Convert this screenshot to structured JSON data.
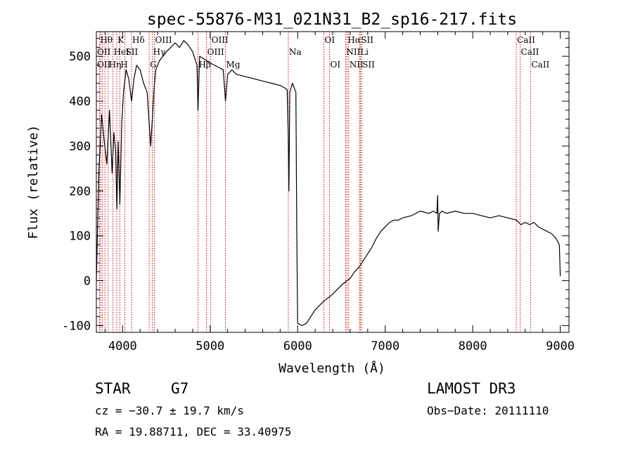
{
  "chart_data": {
    "type": "line",
    "title": "spec-55876-M31_021N31_B2_sp16-217.fits",
    "xlabel": "Wavelength (Å)",
    "ylabel": "Flux (relative)",
    "xlim": [
      3700,
      9100
    ],
    "ylim": [
      -115,
      555
    ],
    "xticks": [
      4000,
      5000,
      6000,
      7000,
      8000,
      9000
    ],
    "yticks": [
      -100,
      0,
      100,
      200,
      300,
      400,
      500
    ],
    "line_color": "#000000",
    "marker_color": "#cc0000",
    "series": [
      {
        "x": [
          3700,
          3730,
          3760,
          3790,
          3820,
          3850,
          3880,
          3900,
          3920,
          3934,
          3950,
          3968,
          3990,
          4010,
          4040,
          4070,
          4102,
          4130,
          4160,
          4200,
          4240,
          4280,
          4300,
          4320,
          4340,
          4360,
          4380,
          4420,
          4460,
          4500,
          4550,
          4600,
          4650,
          4700,
          4750,
          4800,
          4850,
          4861,
          4880,
          4920,
          4960,
          5000,
          5050,
          5100,
          5150,
          5175,
          5200,
          5250,
          5300,
          5400,
          5500,
          5600,
          5700,
          5800,
          5850,
          5880,
          5893,
          5900,
          5910,
          5940,
          5960,
          5980,
          5990,
          6000,
          6050,
          6100,
          6150,
          6200,
          6250,
          6300,
          6350,
          6400,
          6450,
          6500,
          6563,
          6600,
          6650,
          6700,
          6750,
          6800,
          6850,
          6900,
          6950,
          7000,
          7050,
          7100,
          7150,
          7200,
          7300,
          7400,
          7500,
          7550,
          7590,
          7600,
          7605,
          7620,
          7650,
          7700,
          7800,
          7900,
          8000,
          8100,
          8200,
          8300,
          8400,
          8500,
          8550,
          8600,
          8650,
          8700,
          8750,
          8800,
          8850,
          8900,
          8950,
          8990,
          9000
        ],
        "y": [
          0,
          250,
          370,
          310,
          260,
          380,
          240,
          330,
          290,
          160,
          310,
          170,
          350,
          420,
          470,
          450,
          400,
          450,
          480,
          470,
          440,
          420,
          360,
          300,
          360,
          430,
          470,
          490,
          500,
          510,
          520,
          530,
          520,
          535,
          525,
          510,
          480,
          380,
          500,
          495,
          490,
          485,
          480,
          475,
          470,
          400,
          460,
          470,
          460,
          455,
          450,
          445,
          440,
          435,
          430,
          425,
          320,
          200,
          420,
          440,
          430,
          420,
          100,
          -95,
          -100,
          -95,
          -80,
          -65,
          -55,
          -45,
          -38,
          -30,
          -20,
          -10,
          0,
          5,
          20,
          30,
          45,
          60,
          75,
          95,
          110,
          120,
          130,
          135,
          135,
          140,
          145,
          155,
          150,
          155,
          150,
          190,
          110,
          150,
          155,
          150,
          155,
          150,
          150,
          145,
          140,
          145,
          140,
          135,
          125,
          130,
          125,
          130,
          120,
          115,
          110,
          105,
          95,
          80,
          10
        ]
      }
    ],
    "line_markers": [
      {
        "x": 3736
      },
      {
        "x": 3750
      },
      {
        "x": 3770
      },
      {
        "x": 3798
      },
      {
        "x": 3835
      },
      {
        "x": 3889
      },
      {
        "x": 3934
      },
      {
        "x": 3968
      },
      {
        "x": 4026
      },
      {
        "x": 4102
      },
      {
        "x": 4304
      },
      {
        "x": 4340
      },
      {
        "x": 4363
      },
      {
        "x": 4861
      },
      {
        "x": 4959
      },
      {
        "x": 5007
      },
      {
        "x": 5175
      },
      {
        "x": 5893
      },
      {
        "x": 6300
      },
      {
        "x": 6364
      },
      {
        "x": 6548
      },
      {
        "x": 6563
      },
      {
        "x": 6583
      },
      {
        "x": 6707
      },
      {
        "x": 6716
      },
      {
        "x": 6731
      },
      {
        "x": 8498
      },
      {
        "x": 8542
      },
      {
        "x": 8662
      }
    ],
    "line_labels": [
      {
        "text": "Hθ",
        "x": 3736,
        "row": 1
      },
      {
        "text": "K",
        "x": 3934,
        "row": 1
      },
      {
        "text": "Hδ",
        "x": 4102,
        "row": 1
      },
      {
        "text": "OIII",
        "x": 4363,
        "row": 1
      },
      {
        "text": "OIII",
        "x": 5007,
        "row": 1
      },
      {
        "text": "OI",
        "x": 6300,
        "row": 1
      },
      {
        "text": "Hα",
        "x": 6563,
        "row": 1
      },
      {
        "text": "SII",
        "x": 6716,
        "row": 1
      },
      {
        "text": "CaII",
        "x": 8498,
        "row": 1
      },
      {
        "text": "OII",
        "x": 3700,
        "row": 2
      },
      {
        "text": "HeI",
        "x": 3889,
        "row": 2
      },
      {
        "text": "SII",
        "x": 4026,
        "row": 2
      },
      {
        "text": "Hγ",
        "x": 4340,
        "row": 2
      },
      {
        "text": "OIII",
        "x": 4959,
        "row": 2
      },
      {
        "text": "Na",
        "x": 5893,
        "row": 2
      },
      {
        "text": "NII",
        "x": 6548,
        "row": 2
      },
      {
        "text": "Li",
        "x": 6707,
        "row": 2
      },
      {
        "text": "CaII",
        "x": 8542,
        "row": 2
      },
      {
        "text": "OII",
        "x": 3700,
        "row": 3
      },
      {
        "text": "Hη",
        "x": 3835,
        "row": 3
      },
      {
        "text": "H",
        "x": 3968,
        "row": 3
      },
      {
        "text": "G",
        "x": 4304,
        "row": 3
      },
      {
        "text": "Hβ",
        "x": 4861,
        "row": 3
      },
      {
        "text": "Mg",
        "x": 5175,
        "row": 3
      },
      {
        "text": "OI",
        "x": 6364,
        "row": 3
      },
      {
        "text": "NII",
        "x": 6583,
        "row": 3
      },
      {
        "text": "SII",
        "x": 6731,
        "row": 3
      },
      {
        "text": "CaII",
        "x": 8662,
        "row": 3
      }
    ]
  },
  "footer": {
    "class_label": "STAR",
    "subclass": "G7",
    "survey": "LAMOST DR3",
    "cz": "cz = −30.7 ± 19.7 km/s",
    "obs_date": "Obs−Date: 20111110",
    "coords": "RA =  19.88711, DEC =  33.40975"
  }
}
